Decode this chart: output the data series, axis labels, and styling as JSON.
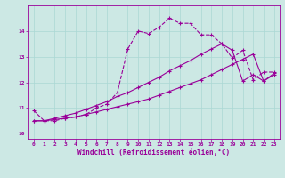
{
  "xlabel": "Windchill (Refroidissement éolien,°C)",
  "bg_color": "#cce8e4",
  "line_color": "#990099",
  "grid_color": "#aad8d4",
  "xlim": [
    -0.5,
    23.5
  ],
  "ylim": [
    9.8,
    15.0
  ],
  "xticks": [
    0,
    1,
    2,
    3,
    4,
    5,
    6,
    7,
    8,
    9,
    10,
    11,
    12,
    13,
    14,
    15,
    16,
    17,
    18,
    19,
    20,
    21,
    22,
    23
  ],
  "yticks": [
    10,
    11,
    12,
    13,
    14
  ],
  "line1_x": [
    0,
    1,
    2,
    3,
    4,
    5,
    6,
    7,
    8,
    9,
    10,
    11,
    12,
    13,
    14,
    15,
    16,
    17,
    18,
    19,
    20,
    21,
    22,
    23
  ],
  "line1_y": [
    10.9,
    10.5,
    10.5,
    10.6,
    10.65,
    10.75,
    11.0,
    11.15,
    11.6,
    13.3,
    14.0,
    13.9,
    14.15,
    14.5,
    14.3,
    14.3,
    13.85,
    13.85,
    13.5,
    12.95,
    13.25,
    12.1,
    12.4,
    12.4
  ],
  "line2_x": [
    0,
    1,
    2,
    3,
    4,
    5,
    6,
    7,
    8,
    9,
    10,
    11,
    12,
    13,
    14,
    15,
    16,
    17,
    18,
    19,
    20,
    21,
    22,
    23
  ],
  "line2_y": [
    10.5,
    10.5,
    10.55,
    10.6,
    10.65,
    10.75,
    10.85,
    10.95,
    11.05,
    11.15,
    11.25,
    11.35,
    11.5,
    11.65,
    11.8,
    11.95,
    12.1,
    12.3,
    12.5,
    12.7,
    12.9,
    13.1,
    12.05,
    12.35
  ],
  "line3_x": [
    0,
    1,
    2,
    3,
    4,
    5,
    6,
    7,
    8,
    9,
    10,
    11,
    12,
    13,
    14,
    15,
    16,
    17,
    18,
    19,
    20,
    21,
    22,
    23
  ],
  "line3_y": [
    10.5,
    10.5,
    10.6,
    10.7,
    10.8,
    10.95,
    11.1,
    11.25,
    11.45,
    11.6,
    11.8,
    12.0,
    12.2,
    12.45,
    12.65,
    12.85,
    13.1,
    13.3,
    13.5,
    13.25,
    12.05,
    12.3,
    12.05,
    12.3
  ]
}
